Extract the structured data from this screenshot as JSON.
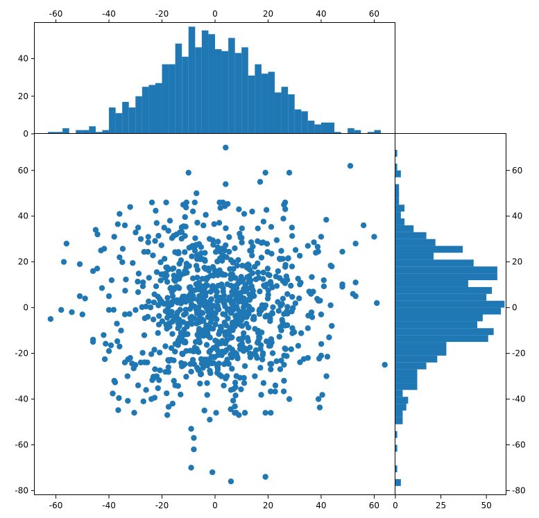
{
  "chart_data": [
    {
      "name": "top-histogram",
      "type": "bar",
      "orientation": "vertical",
      "x_domain": [
        -68,
        68
      ],
      "ylim": [
        0,
        59
      ],
      "x_ticks": [
        -60,
        -40,
        -20,
        0,
        20,
        40,
        60
      ],
      "y_ticks": [
        0,
        20,
        40
      ],
      "bar_color": "#1f77b4",
      "bins": [
        {
          "x0": -63.0,
          "x1": -60.0,
          "count": 1
        },
        {
          "x0": -60.0,
          "x1": -57.5,
          "count": 1
        },
        {
          "x0": -57.5,
          "x1": -55.0,
          "count": 3
        },
        {
          "x0": -55.0,
          "x1": -52.5,
          "count": 0
        },
        {
          "x0": -52.5,
          "x1": -50.0,
          "count": 2
        },
        {
          "x0": -50.0,
          "x1": -47.5,
          "count": 2
        },
        {
          "x0": -47.5,
          "x1": -45.0,
          "count": 4
        },
        {
          "x0": -45.0,
          "x1": -42.5,
          "count": 1
        },
        {
          "x0": -42.5,
          "x1": -40.0,
          "count": 2
        },
        {
          "x0": -40.0,
          "x1": -37.5,
          "count": 14
        },
        {
          "x0": -37.5,
          "x1": -35.0,
          "count": 11
        },
        {
          "x0": -35.0,
          "x1": -32.5,
          "count": 17
        },
        {
          "x0": -32.5,
          "x1": -30.0,
          "count": 14
        },
        {
          "x0": -30.0,
          "x1": -27.5,
          "count": 20
        },
        {
          "x0": -27.5,
          "x1": -25.0,
          "count": 25
        },
        {
          "x0": -25.0,
          "x1": -22.5,
          "count": 26
        },
        {
          "x0": -22.5,
          "x1": -20.0,
          "count": 27
        },
        {
          "x0": -20.0,
          "x1": -17.5,
          "count": 37
        },
        {
          "x0": -17.5,
          "x1": -15.0,
          "count": 37
        },
        {
          "x0": -15.0,
          "x1": -12.5,
          "count": 48
        },
        {
          "x0": -12.5,
          "x1": -10.0,
          "count": 41
        },
        {
          "x0": -10.0,
          "x1": -7.5,
          "count": 57
        },
        {
          "x0": -7.5,
          "x1": -5.0,
          "count": 46
        },
        {
          "x0": -5.0,
          "x1": -2.5,
          "count": 55
        },
        {
          "x0": -2.5,
          "x1": 0.0,
          "count": 53
        },
        {
          "x0": 0.0,
          "x1": 2.5,
          "count": 45
        },
        {
          "x0": 2.5,
          "x1": 5.0,
          "count": 44
        },
        {
          "x0": 5.0,
          "x1": 7.5,
          "count": 51
        },
        {
          "x0": 7.5,
          "x1": 10.0,
          "count": 43
        },
        {
          "x0": 10.0,
          "x1": 12.5,
          "count": 46
        },
        {
          "x0": 12.5,
          "x1": 15.0,
          "count": 31
        },
        {
          "x0": 15.0,
          "x1": 17.5,
          "count": 37
        },
        {
          "x0": 17.5,
          "x1": 20.0,
          "count": 32
        },
        {
          "x0": 20.0,
          "x1": 22.5,
          "count": 33
        },
        {
          "x0": 22.5,
          "x1": 25.0,
          "count": 22
        },
        {
          "x0": 25.0,
          "x1": 27.5,
          "count": 25
        },
        {
          "x0": 27.5,
          "x1": 30.0,
          "count": 21
        },
        {
          "x0": 30.0,
          "x1": 32.5,
          "count": 13
        },
        {
          "x0": 32.5,
          "x1": 35.0,
          "count": 12
        },
        {
          "x0": 35.0,
          "x1": 37.5,
          "count": 7
        },
        {
          "x0": 37.5,
          "x1": 40.0,
          "count": 5
        },
        {
          "x0": 40.0,
          "x1": 42.5,
          "count": 6
        },
        {
          "x0": 42.5,
          "x1": 45.0,
          "count": 6
        },
        {
          "x0": 45.0,
          "x1": 47.5,
          "count": 1
        },
        {
          "x0": 47.5,
          "x1": 50.0,
          "count": 0
        },
        {
          "x0": 50.0,
          "x1": 52.5,
          "count": 3
        },
        {
          "x0": 52.5,
          "x1": 55.0,
          "count": 2
        },
        {
          "x0": 55.0,
          "x1": 57.5,
          "count": 0
        },
        {
          "x0": 57.5,
          "x1": 60.0,
          "count": 1
        },
        {
          "x0": 60.0,
          "x1": 62.5,
          "count": 2
        }
      ]
    },
    {
      "name": "scatter",
      "type": "scatter",
      "xlim": [
        -68,
        68
      ],
      "ylim": [
        -82,
        76
      ],
      "x_ticks": [
        -60,
        -40,
        -20,
        0,
        20,
        40,
        60
      ],
      "y_ticks": [
        -80,
        -60,
        -40,
        -20,
        0,
        20,
        40,
        60
      ],
      "marker_color": "#1f77b4",
      "random_seed": 20240607,
      "random_points": 860,
      "random_sigma": [
        17,
        19
      ],
      "points": [
        [
          4,
          70
        ],
        [
          51,
          62
        ],
        [
          -10,
          59
        ],
        [
          19,
          59
        ],
        [
          28,
          59
        ],
        [
          4,
          54
        ],
        [
          17,
          55
        ],
        [
          -7,
          50
        ],
        [
          56,
          36
        ],
        [
          -36,
          41
        ],
        [
          -32,
          44
        ],
        [
          -56,
          28
        ],
        [
          -57,
          20
        ],
        [
          -51,
          19
        ],
        [
          -46,
          16
        ],
        [
          53,
          28
        ],
        [
          60,
          31
        ],
        [
          53,
          11
        ],
        [
          -62,
          -5
        ],
        [
          -58,
          -1
        ],
        [
          -54,
          -2
        ],
        [
          -50,
          -3
        ],
        [
          -51,
          5
        ],
        [
          -49,
          4
        ],
        [
          52,
          6
        ],
        [
          53,
          5
        ],
        [
          61,
          2
        ],
        [
          -46,
          -14
        ],
        [
          -46,
          -15
        ],
        [
          64,
          -25
        ],
        [
          39,
          -40
        ],
        [
          42,
          -30
        ],
        [
          -18,
          -47
        ],
        [
          -13,
          -38
        ],
        [
          -4,
          -45
        ],
        [
          -2,
          -49
        ],
        [
          6,
          -36
        ],
        [
          9,
          -47
        ],
        [
          19,
          -46
        ],
        [
          -9,
          -53
        ],
        [
          -8,
          -57
        ],
        [
          -8,
          -62
        ],
        [
          -9,
          -70
        ],
        [
          -1,
          -72
        ],
        [
          6,
          -76
        ],
        [
          19,
          -74
        ],
        [
          -45,
          34
        ],
        [
          -43,
          25
        ],
        [
          -38,
          31
        ],
        [
          -38,
          -32
        ],
        [
          -33,
          -30
        ],
        [
          -29,
          -34
        ],
        [
          -27,
          -41
        ],
        [
          -24,
          -40
        ],
        [
          -16,
          -42
        ],
        [
          -40,
          5
        ],
        [
          -42,
          -12
        ],
        [
          -40,
          -19
        ],
        [
          -34,
          -24
        ],
        [
          -26,
          -36
        ],
        [
          28,
          -40
        ],
        [
          26,
          -32
        ],
        [
          35,
          -22
        ],
        [
          40,
          -21
        ],
        [
          43,
          -13
        ],
        [
          44,
          -8
        ],
        [
          40,
          -3
        ],
        [
          39,
          3
        ],
        [
          37,
          7
        ],
        [
          41,
          12
        ],
        [
          44,
          18
        ],
        [
          38,
          24
        ],
        [
          35,
          27
        ],
        [
          40,
          31
        ],
        [
          29,
          35
        ],
        [
          26,
          45
        ],
        [
          14,
          42
        ],
        [
          11,
          41
        ],
        [
          9,
          43
        ],
        [
          -12,
          45
        ],
        [
          -17,
          38
        ],
        [
          -22,
          37
        ],
        [
          -29,
          35
        ],
        [
          -34,
          36
        ],
        [
          -36,
          22
        ],
        [
          -39,
          12
        ],
        [
          -40,
          -1
        ],
        [
          -37,
          -7
        ],
        [
          -36,
          -17
        ],
        [
          -32,
          -22
        ],
        [
          -28,
          -24
        ],
        [
          -22,
          -30
        ],
        [
          -15,
          -34
        ],
        [
          -9,
          -28
        ],
        [
          -3,
          -33
        ],
        [
          4,
          -31
        ],
        [
          11,
          -33
        ],
        [
          15,
          -30
        ],
        [
          21,
          -27
        ],
        [
          26,
          -25
        ]
      ]
    },
    {
      "name": "right-histogram",
      "type": "bar",
      "orientation": "horizontal",
      "y_domain": [
        -82,
        76
      ],
      "xlim": [
        0,
        61
      ],
      "x_ticks": [
        0,
        25,
        50
      ],
      "y_ticks": [
        -80,
        -60,
        -40,
        -20,
        0,
        20,
        40,
        60
      ],
      "bar_color": "#1f77b4",
      "bins": [
        {
          "y0": -78.0,
          "y1": -75.0,
          "count": 3
        },
        {
          "y0": -75.0,
          "y1": -72.0,
          "count": 0
        },
        {
          "y0": -72.0,
          "y1": -69.0,
          "count": 1
        },
        {
          "y0": -69.0,
          "y1": -63.0,
          "count": 0
        },
        {
          "y0": -63.0,
          "y1": -60.0,
          "count": 1
        },
        {
          "y0": -60.0,
          "y1": -57.0,
          "count": 0
        },
        {
          "y0": -57.0,
          "y1": -54.0,
          "count": 1
        },
        {
          "y0": -54.0,
          "y1": -51.0,
          "count": 0
        },
        {
          "y0": -51.0,
          "y1": -48.0,
          "count": 4
        },
        {
          "y0": -48.0,
          "y1": -45.0,
          "count": 4
        },
        {
          "y0": -45.0,
          "y1": -42.0,
          "count": 6
        },
        {
          "y0": -42.0,
          "y1": -39.0,
          "count": 7
        },
        {
          "y0": -39.0,
          "y1": -36.0,
          "count": 4
        },
        {
          "y0": -36.0,
          "y1": -33.0,
          "count": 12
        },
        {
          "y0": -33.0,
          "y1": -30.0,
          "count": 12
        },
        {
          "y0": -30.0,
          "y1": -27.0,
          "count": 12
        },
        {
          "y0": -27.0,
          "y1": -24.0,
          "count": 17
        },
        {
          "y0": -24.0,
          "y1": -21.0,
          "count": 23
        },
        {
          "y0": -21.0,
          "y1": -18.0,
          "count": 28
        },
        {
          "y0": -18.0,
          "y1": -15.0,
          "count": 28
        },
        {
          "y0": -15.0,
          "y1": -12.0,
          "count": 51
        },
        {
          "y0": -12.0,
          "y1": -9.0,
          "count": 54
        },
        {
          "y0": -9.0,
          "y1": -6.0,
          "count": 45
        },
        {
          "y0": -6.0,
          "y1": -3.0,
          "count": 48
        },
        {
          "y0": -3.0,
          "y1": 0.0,
          "count": 58
        },
        {
          "y0": 0.0,
          "y1": 3.0,
          "count": 60
        },
        {
          "y0": 3.0,
          "y1": 6.0,
          "count": 50
        },
        {
          "y0": 6.0,
          "y1": 9.0,
          "count": 53
        },
        {
          "y0": 9.0,
          "y1": 12.0,
          "count": 40
        },
        {
          "y0": 12.0,
          "y1": 15.0,
          "count": 56
        },
        {
          "y0": 15.0,
          "y1": 18.0,
          "count": 56
        },
        {
          "y0": 18.0,
          "y1": 21.0,
          "count": 43
        },
        {
          "y0": 21.0,
          "y1": 24.0,
          "count": 21
        },
        {
          "y0": 24.0,
          "y1": 27.0,
          "count": 37
        },
        {
          "y0": 27.0,
          "y1": 30.0,
          "count": 22
        },
        {
          "y0": 30.0,
          "y1": 33.0,
          "count": 17
        },
        {
          "y0": 33.0,
          "y1": 36.0,
          "count": 10
        },
        {
          "y0": 36.0,
          "y1": 39.0,
          "count": 5
        },
        {
          "y0": 39.0,
          "y1": 42.0,
          "count": 3
        },
        {
          "y0": 42.0,
          "y1": 45.0,
          "count": 5
        },
        {
          "y0": 45.0,
          "y1": 48.0,
          "count": 2
        },
        {
          "y0": 48.0,
          "y1": 51.0,
          "count": 2
        },
        {
          "y0": 51.0,
          "y1": 54.0,
          "count": 2
        },
        {
          "y0": 54.0,
          "y1": 57.0,
          "count": 0
        },
        {
          "y0": 57.0,
          "y1": 60.0,
          "count": 3
        },
        {
          "y0": 60.0,
          "y1": 63.0,
          "count": 1
        },
        {
          "y0": 63.0,
          "y1": 66.0,
          "count": 0
        },
        {
          "y0": 66.0,
          "y1": 69.0,
          "count": 1
        }
      ]
    }
  ]
}
